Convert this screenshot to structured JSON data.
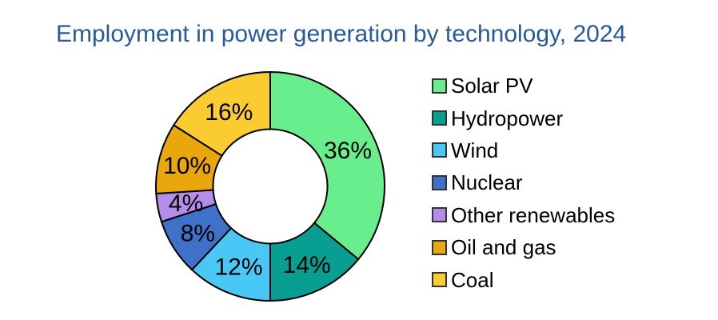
{
  "title": {
    "text": "Employment in power generation by technology, 2024",
    "color": "#28599A"
  },
  "chart_data": {
    "type": "pie",
    "subtype": "donut",
    "title": "Employment in power generation by technology, 2024",
    "unit": "%",
    "categories": [
      "Solar PV",
      "Hydropower",
      "Wind",
      "Nuclear",
      "Other renewables",
      "Oil and gas",
      "Coal"
    ],
    "values": [
      36,
      14,
      12,
      8,
      4,
      10,
      16
    ],
    "labels": [
      "36%",
      "14%",
      "12%",
      "8%",
      "4%",
      "10%",
      "16%"
    ],
    "colors": [
      "#68EE8C",
      "#089E92",
      "#49C8F6",
      "#3F71C8",
      "#B48CE9",
      "#E9A60D",
      "#FACC30"
    ],
    "start_angle_deg": 0,
    "direction": "clockwise",
    "inner_radius_ratio": 0.5,
    "stroke_color": "#000000",
    "label_color": "#000000",
    "legend_position": "right",
    "legend_swatch_border": "#333333"
  }
}
